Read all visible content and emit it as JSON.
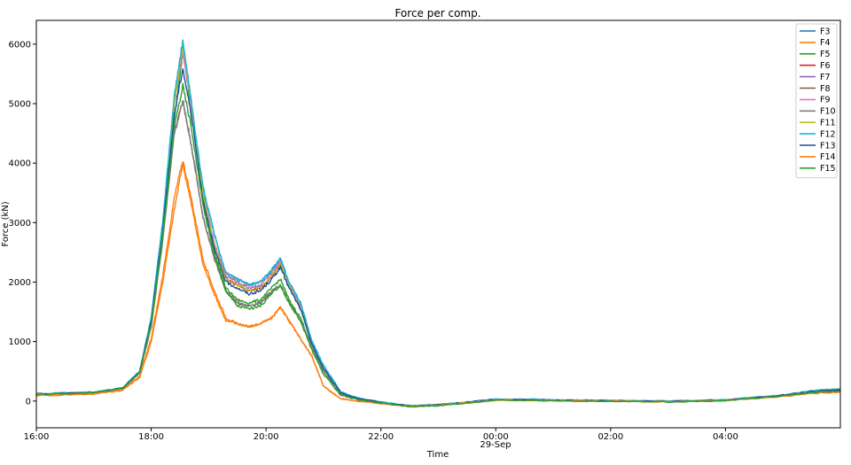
{
  "chart_data": {
    "type": "line",
    "title": "Force per comp.",
    "xlabel": "Time",
    "ylabel": "Force (kN)",
    "date_label": "29-Sep",
    "x_hours": [
      16,
      17,
      17.5,
      17.8,
      18,
      18.2,
      18.4,
      18.55,
      18.7,
      18.9,
      19.1,
      19.3,
      19.5,
      19.7,
      19.9,
      20.1,
      20.25,
      20.4,
      20.6,
      20.8,
      21,
      21.3,
      21.6,
      22,
      22.5,
      23,
      23.5,
      24,
      25,
      26,
      27,
      28,
      29,
      29.5,
      30
    ],
    "xlim": [
      16,
      30
    ],
    "ylim": [
      -450,
      6400
    ],
    "x_ticks": [
      {
        "value": 16,
        "label": "16:00"
      },
      {
        "value": 18,
        "label": "18:00"
      },
      {
        "value": 20,
        "label": "20:00"
      },
      {
        "value": 22,
        "label": "22:00"
      },
      {
        "value": 24,
        "label": "00:00"
      },
      {
        "value": 26,
        "label": "02:00"
      },
      {
        "value": 28,
        "label": "04:00"
      }
    ],
    "y_ticks": [
      0,
      1000,
      2000,
      3000,
      4000,
      5000,
      6000
    ],
    "legend_position": "top-right",
    "series": [
      {
        "name": "F3",
        "color": "#1f77b4",
        "values": [
          120,
          150,
          220,
          500,
          1400,
          3000,
          5100,
          6050,
          5000,
          3600,
          2800,
          2150,
          2050,
          1950,
          2000,
          2200,
          2400,
          2000,
          1650,
          1000,
          600,
          150,
          50,
          -20,
          -80,
          -60,
          -20,
          30,
          20,
          10,
          0,
          20,
          100,
          170,
          200
        ]
      },
      {
        "name": "F4",
        "color": "#ff7f0e",
        "values": [
          90,
          120,
          180,
          400,
          1000,
          2000,
          3200,
          4000,
          3300,
          2300,
          1800,
          1350,
          1300,
          1250,
          1300,
          1400,
          1580,
          1350,
          1050,
          750,
          250,
          40,
          0,
          -40,
          -90,
          -70,
          -30,
          20,
          10,
          0,
          -10,
          10,
          80,
          130,
          150
        ]
      },
      {
        "name": "F5",
        "color": "#2ca02c",
        "values": [
          110,
          140,
          210,
          480,
          1300,
          2800,
          4700,
          5900,
          4900,
          3400,
          2500,
          1900,
          1700,
          1650,
          1700,
          1900,
          2050,
          1700,
          1400,
          900,
          500,
          120,
          30,
          -30,
          -90,
          -70,
          -30,
          20,
          10,
          0,
          -10,
          10,
          90,
          150,
          180
        ]
      },
      {
        "name": "F6",
        "color": "#d62728",
        "values": [
          115,
          145,
          215,
          490,
          1350,
          2900,
          5000,
          6000,
          5000,
          3500,
          2600,
          2050,
          1950,
          1850,
          1900,
          2100,
          2300,
          1950,
          1550,
          950,
          550,
          140,
          40,
          -25,
          -85,
          -65,
          -25,
          25,
          15,
          5,
          -5,
          15,
          95,
          160,
          190
        ]
      },
      {
        "name": "F7",
        "color": "#9467bd",
        "values": [
          115,
          145,
          215,
          490,
          1350,
          2900,
          5000,
          6000,
          5000,
          3500,
          2650,
          2100,
          2000,
          1900,
          1950,
          2150,
          2350,
          1950,
          1600,
          950,
          550,
          140,
          40,
          -25,
          -85,
          -65,
          -25,
          25,
          15,
          5,
          -5,
          15,
          95,
          160,
          190
        ]
      },
      {
        "name": "F8",
        "color": "#8c564b",
        "values": [
          110,
          140,
          210,
          480,
          1250,
          2700,
          4500,
          5050,
          4300,
          3100,
          2400,
          1850,
          1650,
          1600,
          1650,
          1850,
          1950,
          1650,
          1350,
          900,
          500,
          120,
          30,
          -30,
          -90,
          -70,
          -30,
          20,
          10,
          0,
          -10,
          10,
          90,
          150,
          180
        ]
      },
      {
        "name": "F9",
        "color": "#e377c2",
        "values": [
          115,
          145,
          215,
          490,
          1350,
          2900,
          5000,
          5900,
          4950,
          3500,
          2650,
          2150,
          2050,
          1950,
          2000,
          2150,
          2350,
          1950,
          1600,
          950,
          550,
          140,
          40,
          -25,
          -85,
          -65,
          -25,
          25,
          15,
          5,
          -5,
          15,
          95,
          160,
          190
        ]
      },
      {
        "name": "F10",
        "color": "#7f7f7f",
        "values": [
          110,
          140,
          210,
          480,
          1250,
          2700,
          4500,
          5050,
          4300,
          3100,
          2400,
          1850,
          1650,
          1600,
          1650,
          1850,
          1950,
          1650,
          1350,
          900,
          500,
          120,
          30,
          -30,
          -90,
          -70,
          -30,
          20,
          10,
          0,
          -10,
          10,
          90,
          150,
          180
        ]
      },
      {
        "name": "F11",
        "color": "#bcbd22",
        "values": [
          115,
          145,
          215,
          490,
          1350,
          2900,
          5000,
          6000,
          5000,
          3500,
          2600,
          2050,
          1950,
          1850,
          1900,
          2100,
          2300,
          1950,
          1550,
          950,
          550,
          140,
          40,
          -25,
          -85,
          -65,
          -25,
          25,
          15,
          5,
          -5,
          15,
          95,
          160,
          190
        ]
      },
      {
        "name": "F12",
        "color": "#17becf",
        "values": [
          120,
          150,
          220,
          500,
          1400,
          3000,
          5100,
          6050,
          5000,
          3600,
          2800,
          2150,
          2050,
          1950,
          2000,
          2200,
          2400,
          2000,
          1650,
          1000,
          600,
          150,
          50,
          -20,
          -80,
          -60,
          -20,
          30,
          20,
          10,
          0,
          20,
          100,
          170,
          200
        ]
      },
      {
        "name": "F13",
        "color": "#1f4f9f",
        "values": [
          115,
          145,
          215,
          490,
          1350,
          2850,
          4800,
          5600,
          4800,
          3400,
          2550,
          2000,
          1900,
          1800,
          1850,
          2050,
          2250,
          1900,
          1550,
          950,
          550,
          140,
          40,
          -25,
          -85,
          -65,
          -25,
          25,
          15,
          5,
          -5,
          15,
          95,
          160,
          190
        ]
      },
      {
        "name": "F14",
        "color": "#ff7f0e",
        "values": [
          100,
          130,
          190,
          420,
          1050,
          2100,
          3400,
          4050,
          3400,
          2400,
          1850,
          1400,
          1300,
          1250,
          1300,
          1400,
          1580,
          1350,
          1050,
          750,
          250,
          40,
          0,
          -40,
          -90,
          -70,
          -30,
          20,
          10,
          0,
          -10,
          10,
          80,
          130,
          150
        ]
      },
      {
        "name": "F15",
        "color": "#2ca02c",
        "values": [
          110,
          140,
          210,
          480,
          1300,
          2750,
          4600,
          5300,
          4600,
          3300,
          2450,
          1850,
          1600,
          1550,
          1600,
          1800,
          1950,
          1650,
          1350,
          850,
          450,
          100,
          20,
          -35,
          -95,
          -75,
          -35,
          15,
          5,
          -5,
          -15,
          5,
          85,
          145,
          170
        ]
      }
    ]
  }
}
